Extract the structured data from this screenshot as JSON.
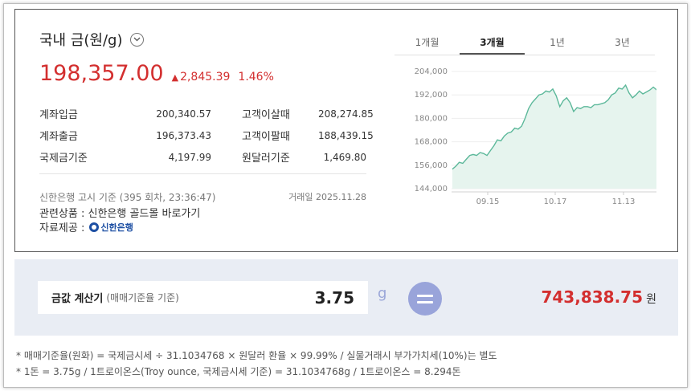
{
  "header": {
    "title": "국내 금(원/g)",
    "price": "198,357.00",
    "change_symbol": "▲",
    "change_amount": "2,845.39",
    "change_percent": "1.46%"
  },
  "rates": [
    {
      "label": "계좌입금",
      "value": "200,340.57",
      "label2": "고객이살때",
      "value2": "208,274.85"
    },
    {
      "label": "계좌출금",
      "value": "196,373.43",
      "label2": "고객이팔때",
      "value2": "188,439.15"
    },
    {
      "label": "국제금기준",
      "value": "4,197.99",
      "label2": "원달러기준",
      "value2": "1,469.80"
    }
  ],
  "notice": {
    "basis": "신한은행 고시 기준 (395 회차, 23:36:47)",
    "trade_date": "거래일 2025.11.28",
    "related_prefix": "관련상품 : ",
    "related_link": "신한은행 골드몰 바로가기",
    "source_prefix": "자료제공 :",
    "source_logo": "신한은행"
  },
  "tabs": [
    {
      "label": "1개월",
      "active": false
    },
    {
      "label": "3개월",
      "active": true
    },
    {
      "label": "1년",
      "active": false
    },
    {
      "label": "3년",
      "active": false
    }
  ],
  "calculator": {
    "label": "금값 계산기",
    "sub_label": "(매매기준율 기준)",
    "input_value": "3.75",
    "unit": "g",
    "result": "743,838.75",
    "result_unit": "원"
  },
  "footnotes": [
    "* 매매기준율(원화) = 국제금시세 ÷ 31.1034768 × 원달러 환율 × 99.99% / 실물거래시 부가가치세(10%)는 별도",
    "* 1돈 = 3.75g / 1트로이온스(Troy ounce, 국제금시세 기준) = 31.1034768g / 1트로이온스 = 8.294돈"
  ],
  "colors": {
    "price_up": "#d32f2f",
    "chart_line": "#5cb89a",
    "chart_fill": "#e6f4ee",
    "calc_bg": "#e9edf4",
    "equals_btn": "#99a4da"
  },
  "chart_data": {
    "type": "area",
    "x_ticks": [
      "09.15",
      "10.17",
      "11.13"
    ],
    "y_ticks": [
      "204,000",
      "192,000",
      "180,000",
      "168,000",
      "156,000",
      "144,000"
    ],
    "ylim": [
      144000,
      204000
    ],
    "grid": true,
    "values": [
      154000,
      155500,
      157500,
      157000,
      159000,
      161000,
      161500,
      161000,
      162500,
      162000,
      161000,
      163500,
      166000,
      169000,
      168500,
      171000,
      172500,
      173000,
      175000,
      174500,
      176000,
      180000,
      185000,
      188000,
      190000,
      192000,
      192500,
      194000,
      193500,
      195000,
      191500,
      186000,
      189000,
      190500,
      188000,
      183500,
      185500,
      185000,
      186000,
      186000,
      185500,
      187000,
      187000,
      187500,
      188000,
      189500,
      192000,
      193000,
      195500,
      195000,
      197000,
      193000,
      190500,
      192000,
      194000,
      192500,
      193500,
      194500,
      196000,
      194500,
      196500,
      198357
    ]
  }
}
